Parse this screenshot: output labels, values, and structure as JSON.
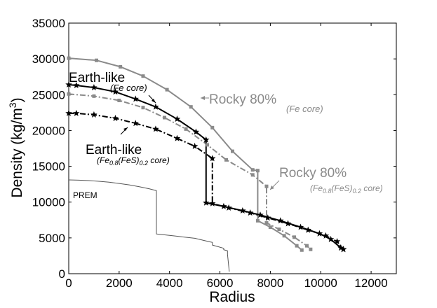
{
  "chart_data": {
    "type": "line",
    "title": "",
    "xlabel": "Radius",
    "ylabel_main": "Density (kg/m",
    "ylabel_sup": "3",
    "ylabel_close": ")",
    "xlim": [
      0,
      13000
    ],
    "ylim": [
      0,
      35000
    ],
    "xticks": [
      0,
      2000,
      4000,
      6000,
      8000,
      10000,
      12000
    ],
    "yticks": [
      0,
      5000,
      10000,
      15000,
      20000,
      25000,
      30000,
      35000
    ],
    "colors": {
      "black": "#000000",
      "gray": "#8a8a8a",
      "prem": "#555555"
    },
    "series": [
      {
        "name": "Rocky 80% (Fe core)",
        "color": "#8a8a8a",
        "dash": "solid",
        "marker": "square",
        "x": [
          0,
          1100,
          2050,
          2950,
          3900,
          4850,
          5700,
          6500,
          7300,
          7500,
          7500,
          8000,
          8550,
          9050,
          9250
        ],
        "y": [
          30100,
          29800,
          28900,
          27600,
          25700,
          23300,
          20400,
          17100,
          14500,
          14400,
          7400,
          6500,
          5300,
          3900,
          3300
        ]
      },
      {
        "name": "Rocky 80% ((Fe0.8(FeS)0.2 core)",
        "color": "#8a8a8a",
        "dash": "dashdot",
        "marker": "square",
        "x": [
          0,
          1000,
          2000,
          2950,
          3800,
          4650,
          5500,
          6250,
          7300,
          7850,
          7850,
          8350,
          8950,
          9450,
          9600
        ],
        "y": [
          25100,
          24800,
          24200,
          23200,
          21800,
          20200,
          18000,
          15900,
          13800,
          12200,
          7100,
          6200,
          5100,
          3900,
          3400
        ]
      },
      {
        "name": "Earth-like (Fe core)",
        "color": "#000000",
        "dash": "solid",
        "marker": "star",
        "x": [
          0,
          300,
          1000,
          1850,
          2650,
          3450,
          4300,
          5050,
          5450,
          5450,
          6150,
          6900,
          7600,
          8400,
          9200,
          9950,
          10400,
          10800,
          10900
        ],
        "y": [
          26400,
          26300,
          26000,
          25400,
          24400,
          23300,
          21600,
          19800,
          18700,
          9900,
          9400,
          8800,
          8200,
          7400,
          6500,
          5600,
          4800,
          3600,
          3400
        ]
      },
      {
        "name": "Earth-like ((Fe0.8(FeS)0.2 core)",
        "color": "#000000",
        "dash": "dashdot",
        "marker": "star",
        "x": [
          0,
          300,
          1000,
          1850,
          2650,
          3450,
          4300,
          5000,
          5700,
          5700,
          6350,
          7200,
          7900,
          8700,
          9500,
          10200,
          10650,
          10900
        ],
        "y": [
          22400,
          22400,
          22200,
          21700,
          21000,
          20200,
          18900,
          17800,
          16100,
          9800,
          9200,
          8500,
          7800,
          7000,
          6100,
          5300,
          4500,
          3400
        ]
      },
      {
        "name": "PREM",
        "color": "#555555",
        "dash": "solid",
        "marker": "none",
        "x": [
          0,
          400,
          800,
          1200,
          1600,
          2000,
          2400,
          2800,
          3200,
          3480,
          3480,
          4000,
          4500,
          5000,
          5600,
          5700,
          5700,
          5950,
          6150,
          6150,
          6300,
          6300,
          6371
        ],
        "y": [
          13100,
          13060,
          13000,
          12900,
          12780,
          12600,
          12400,
          12150,
          11850,
          11600,
          5550,
          5350,
          5150,
          4950,
          4450,
          4380,
          4000,
          3750,
          3550,
          3350,
          3200,
          2700,
          300
        ]
      }
    ],
    "annotations": {
      "earth_fe_title": "Earth-like",
      "earth_fe_sub": "(Fe core)",
      "earth_fes_title": "Earth-like",
      "earth_fes_sub_1": "(Fe",
      "earth_fes_sub_2": "0.8",
      "earth_fes_sub_3": "(FeS)",
      "earth_fes_sub_4": "0.2",
      "earth_fes_sub_5": " core)",
      "rocky_fe_title": "Rocky 80%",
      "rocky_fe_sub": "(Fe core)",
      "rocky_fes_title": "Rocky 80%",
      "rocky_fes_sub_1": "(Fe",
      "rocky_fes_sub_2": "0.8",
      "rocky_fes_sub_3": "(FeS)",
      "rocky_fes_sub_4": "0.2",
      "rocky_fes_sub_5": " core)",
      "prem": "PREM"
    }
  }
}
